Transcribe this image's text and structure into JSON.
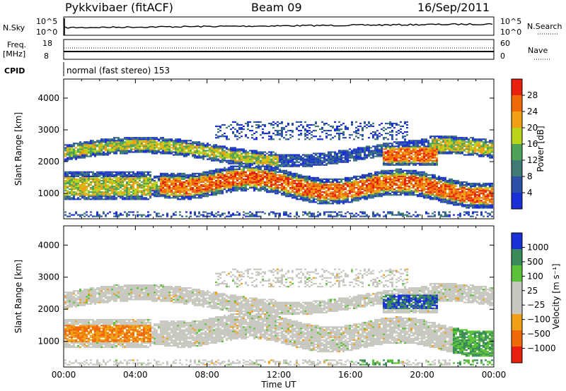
{
  "header": {
    "station": "Pykkvibaer (fitACF)",
    "beam": "Beam 09",
    "date": "16/Sep/2011"
  },
  "top_panel": {
    "left_label": "N.Sky",
    "right_label": "N.Search",
    "left_ticks": [
      "10^5",
      "10^0"
    ],
    "right_ticks": [
      "10^5",
      "10^0"
    ]
  },
  "freq_panel": {
    "left_label_1": "Freq.",
    "left_label_2": "[MHz]",
    "right_label": "Nave",
    "left_ticks": [
      "18",
      "8"
    ],
    "right_ticks": [
      "60",
      "0"
    ]
  },
  "cpid": {
    "label": "CPID",
    "text": "normal (fast stereo) 153"
  },
  "colors": {
    "power_scale": [
      "#1a2fd6",
      "#2e4fa8",
      "#3f7a74",
      "#4ea35a",
      "#b9d419",
      "#f0a015",
      "#f06a0a",
      "#e8200d"
    ],
    "velocity_scale": [
      "#e8200d",
      "#f06a0a",
      "#f0a015",
      "#c8c8c0",
      "#c8c8c0",
      "#5cc23a",
      "#3a8a5a",
      "#1a2fd6"
    ]
  },
  "chart_data": [
    {
      "type": "heatmap",
      "title": "Power",
      "ylabel": "Slant Range [km]",
      "xlabel": "",
      "ylim": [
        200,
        4600
      ],
      "y_ticks": [
        "1000",
        "2000",
        "3000",
        "4000"
      ],
      "x_ticks": [
        "00:00",
        "04:00",
        "08:00",
        "12:00",
        "16:00",
        "20:00",
        "00:00"
      ],
      "colorbar": {
        "label": "Power [dB]",
        "ticks": [
          "4",
          "8",
          "12",
          "16",
          "20",
          "24",
          "28"
        ]
      }
    },
    {
      "type": "heatmap",
      "title": "Velocity",
      "ylabel": "Slant Range [km]",
      "xlabel": "Time UT",
      "ylim": [
        200,
        4600
      ],
      "y_ticks": [
        "1000",
        "2000",
        "3000",
        "4000"
      ],
      "x_ticks": [
        "00:00",
        "04:00",
        "08:00",
        "12:00",
        "16:00",
        "20:00",
        "00:00"
      ],
      "colorbar": {
        "label": "Velocity [m s⁻¹]",
        "ticks": [
          "1000",
          "500",
          "100",
          "25",
          "−25",
          "−100",
          "−500",
          "−1000"
        ]
      }
    }
  ]
}
